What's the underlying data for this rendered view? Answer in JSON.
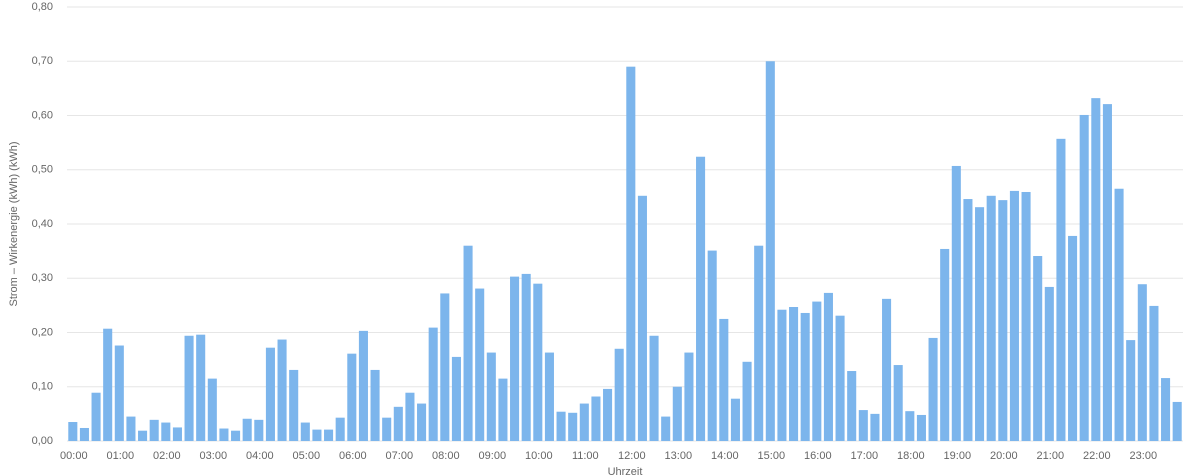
{
  "chart_data": {
    "type": "bar",
    "y_label": "Strom – Wirkenergie (kWh) (kWh)",
    "x_label": "Uhrzeit",
    "color": "#7cb5ec",
    "grid": true,
    "categories": [
      "00:00",
      null,
      null,
      null,
      "01:00",
      null,
      null,
      null,
      "02:00",
      null,
      null,
      null,
      "03:00",
      null,
      null,
      null,
      "04:00",
      null,
      null,
      null,
      "05:00",
      null,
      null,
      null,
      "06:00",
      null,
      null,
      null,
      "07:00",
      null,
      null,
      null,
      "08:00",
      null,
      null,
      null,
      "09:00",
      null,
      null,
      null,
      "10:00",
      null,
      null,
      null,
      "11:00",
      null,
      null,
      null,
      "12:00",
      null,
      null,
      null,
      "13:00",
      null,
      null,
      null,
      "14:00",
      null,
      null,
      null,
      "15:00",
      null,
      null,
      null,
      "16:00",
      null,
      null,
      null,
      "17:00",
      null,
      null,
      null,
      "18:00",
      null,
      null,
      null,
      "19:00",
      null,
      null,
      null,
      "20:00",
      null,
      null,
      null,
      "21:00",
      null,
      null,
      null,
      "22:00",
      null,
      null,
      null,
      "23:00",
      null,
      null,
      null
    ],
    "values": [
      0.035,
      0.024,
      0.089,
      0.207,
      0.176,
      0.045,
      0.019,
      0.039,
      0.034,
      0.025,
      0.194,
      0.196,
      0.115,
      0.023,
      0.019,
      0.041,
      0.039,
      0.172,
      0.187,
      0.131,
      0.034,
      0.021,
      0.021,
      0.043,
      0.161,
      0.203,
      0.131,
      0.043,
      0.063,
      0.089,
      0.069,
      0.209,
      0.272,
      0.155,
      0.36,
      0.281,
      0.163,
      0.115,
      0.303,
      0.308,
      0.29,
      0.163,
      0.054,
      0.052,
      0.069,
      0.082,
      0.096,
      0.17,
      0.69,
      0.452,
      0.194,
      0.045,
      0.1,
      0.163,
      0.524,
      0.351,
      0.225,
      0.078,
      0.146,
      0.36,
      0.7,
      0.242,
      0.247,
      0.236,
      0.257,
      0.273,
      0.231,
      0.129,
      0.057,
      0.05,
      0.262,
      0.14,
      0.055,
      0.048,
      0.19,
      0.354,
      0.507,
      0.446,
      0.431,
      0.452,
      0.444,
      0.461,
      0.459,
      0.341,
      0.284,
      0.557,
      0.378,
      0.601,
      0.632,
      0.621,
      0.465,
      0.186,
      0.289,
      0.249,
      0.116,
      0.072
    ],
    "ylim": [
      0,
      0.8
    ],
    "yticks": [
      {
        "value": 0,
        "label": "0,00"
      },
      {
        "value": 0.1,
        "label": "0,10"
      },
      {
        "value": 0.2,
        "label": "0,20"
      },
      {
        "value": 0.3,
        "label": "0,30"
      },
      {
        "value": 0.4,
        "label": "0,40"
      },
      {
        "value": 0.5,
        "label": "0,50"
      },
      {
        "value": 0.6,
        "label": "0,60"
      },
      {
        "value": 0.7,
        "label": "0,70"
      },
      {
        "value": 0.8,
        "label": "0,80"
      }
    ]
  }
}
